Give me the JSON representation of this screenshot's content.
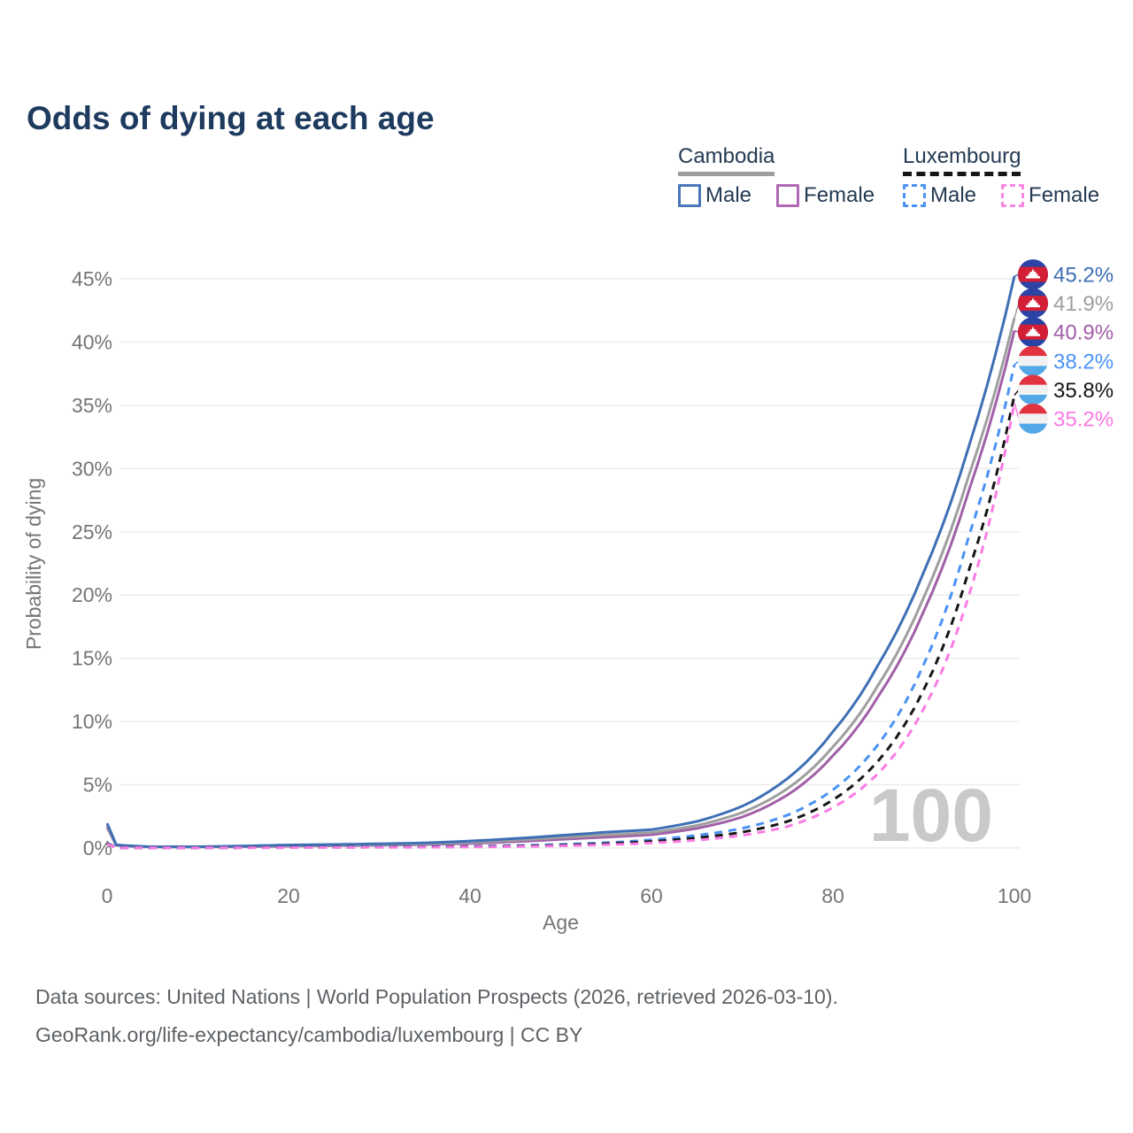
{
  "title": "Odds of dying at each age",
  "legend": {
    "groups": [
      {
        "country": "Cambodia",
        "line_style": "solid",
        "underline_color": "#9e9e9e",
        "items": [
          {
            "label": "Male",
            "color": "#4a77b9",
            "style": "solid"
          },
          {
            "label": "Female",
            "color": "#b06ab5",
            "style": "solid"
          }
        ]
      },
      {
        "country": "Luxembourg",
        "line_style": "dashed",
        "underline_color": "#161616",
        "items": [
          {
            "label": "Male",
            "color": "#4b92f5",
            "style": "dashed"
          },
          {
            "label": "Female",
            "color": "#fb87e0",
            "style": "dashed"
          }
        ]
      }
    ]
  },
  "flags": {
    "cambodia": {
      "bands": [
        "#2a43a5",
        "#d21f35",
        "#2a43a5"
      ],
      "emblem": "#ffffff"
    },
    "luxembourg": {
      "bands": [
        "#e0333f",
        "#f2f2f2",
        "#55a8e8"
      ]
    }
  },
  "chart_data": {
    "type": "line",
    "title": "Odds of dying at each age",
    "xlabel": "Age",
    "ylabel": "Probability of dying",
    "xlim": [
      0,
      100
    ],
    "ylim": [
      0,
      45.5
    ],
    "x_ticks": [
      0,
      20,
      40,
      60,
      80,
      100
    ],
    "y_ticks": [
      0,
      5,
      10,
      15,
      20,
      25,
      30,
      35,
      40,
      45
    ],
    "y_tick_suffix": "%",
    "grid": "horizontal",
    "legend_position": "top-right",
    "watermark": "100",
    "ages": [
      0,
      1,
      5,
      10,
      15,
      20,
      25,
      30,
      35,
      40,
      45,
      50,
      55,
      60,
      65,
      70,
      75,
      80,
      85,
      90,
      95,
      100
    ],
    "series": [
      {
        "name": "Cambodia Male",
        "country": "Cambodia",
        "sex": "Male",
        "color": "#3e6fb5",
        "dash": "solid",
        "flag": "cambodia",
        "end_label": "45.2%",
        "end_value": 45.2,
        "values": [
          1.95,
          0.25,
          0.1,
          0.1,
          0.16,
          0.24,
          0.28,
          0.33,
          0.4,
          0.55,
          0.75,
          1.0,
          1.25,
          1.45,
          2.1,
          3.3,
          5.5,
          9.2,
          14.5,
          21.8,
          31.8,
          45.2
        ]
      },
      {
        "name": "Cambodia",
        "country": "Cambodia",
        "sex": "Both",
        "color": "#9e9e9e",
        "dash": "solid",
        "flag": "cambodia",
        "end_label": "41.9%",
        "end_value": 41.9,
        "values": [
          1.8,
          0.22,
          0.09,
          0.09,
          0.13,
          0.19,
          0.23,
          0.27,
          0.33,
          0.45,
          0.62,
          0.82,
          1.03,
          1.22,
          1.78,
          2.8,
          4.7,
          8.0,
          12.9,
          19.8,
          29.5,
          41.9
        ]
      },
      {
        "name": "Cambodia Female",
        "country": "Cambodia",
        "sex": "Female",
        "color": "#a15fa8",
        "dash": "solid",
        "flag": "cambodia",
        "end_label": "40.9%",
        "end_value": 40.9,
        "values": [
          1.65,
          0.2,
          0.08,
          0.08,
          0.1,
          0.15,
          0.18,
          0.22,
          0.27,
          0.36,
          0.5,
          0.68,
          0.86,
          1.05,
          1.55,
          2.45,
          4.2,
          7.3,
          12.0,
          18.7,
          28.3,
          40.9
        ]
      },
      {
        "name": "Luxembourg Male",
        "country": "Luxembourg",
        "sex": "Male",
        "color": "#4b92f5",
        "dash": "dashed",
        "flag": "luxembourg",
        "end_label": "38.2%",
        "end_value": 38.2,
        "values": [
          0.4,
          0.03,
          0.01,
          0.01,
          0.04,
          0.06,
          0.07,
          0.08,
          0.1,
          0.13,
          0.19,
          0.28,
          0.42,
          0.65,
          1.0,
          1.55,
          2.6,
          4.6,
          8.2,
          14.5,
          24.7,
          38.2
        ]
      },
      {
        "name": "Luxembourg",
        "country": "Luxembourg",
        "sex": "Both",
        "color": "#161616",
        "dash": "dashed",
        "flag": "luxembourg",
        "end_label": "35.8%",
        "end_value": 35.8,
        "values": [
          0.35,
          0.03,
          0.01,
          0.01,
          0.03,
          0.05,
          0.06,
          0.07,
          0.08,
          0.11,
          0.15,
          0.22,
          0.34,
          0.52,
          0.8,
          1.25,
          2.1,
          3.8,
          6.9,
          12.5,
          22.0,
          35.8
        ]
      },
      {
        "name": "Luxembourg Female",
        "country": "Luxembourg",
        "sex": "Female",
        "color": "#fb7be5",
        "dash": "dashed",
        "flag": "luxembourg",
        "end_label": "35.2%",
        "end_value": 35.2,
        "values": [
          0.3,
          0.02,
          0.01,
          0.01,
          0.02,
          0.03,
          0.04,
          0.05,
          0.06,
          0.08,
          0.11,
          0.17,
          0.26,
          0.4,
          0.62,
          1.0,
          1.7,
          3.2,
          5.9,
          11.0,
          20.0,
          35.2
        ]
      }
    ]
  },
  "footer": {
    "line1": "Data sources: United Nations | World Population Prospects (2026, retrieved 2026-03-10).",
    "line2": "GeoRank.org/life-expectancy/cambodia/luxembourg | CC BY"
  }
}
